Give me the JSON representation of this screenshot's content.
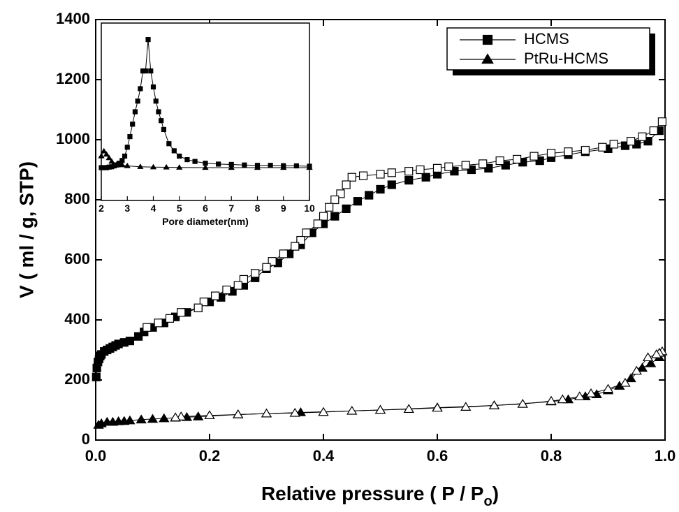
{
  "chart_data": {
    "type": "scatter",
    "ylabel": "V ( ml / g, STP)",
    "xlabel": {
      "text": "Relative pressure ( P / P",
      "subscript": "o",
      "after": ")"
    },
    "xlim": [
      0,
      1
    ],
    "ylim": [
      0,
      1400
    ],
    "xticks": [
      {
        "value": 0,
        "label": "0.0"
      },
      0.2,
      0.4,
      0.6,
      0.8,
      {
        "value": 1,
        "label": "1.0"
      }
    ],
    "yticks": [
      0,
      200,
      400,
      600,
      800,
      1000,
      1200,
      1400
    ],
    "legend": "upper right",
    "series": [
      {
        "name": "HCMS",
        "color": "#000000",
        "marker": "square",
        "branches": [
          {
            "filled": true,
            "x": [
              0.001,
              0.002,
              0.004,
              0.006,
              0.008,
              0.01,
              0.015,
              0.02,
              0.025,
              0.03,
              0.035,
              0.04,
              0.05,
              0.06,
              0.075,
              0.085,
              0.1,
              0.12,
              0.14,
              0.16,
              0.18,
              0.2,
              0.22,
              0.24,
              0.26,
              0.28,
              0.3,
              0.32,
              0.34,
              0.36,
              0.38,
              0.4,
              0.42,
              0.44,
              0.46,
              0.48,
              0.5,
              0.52,
              0.55,
              0.58,
              0.6,
              0.63,
              0.66,
              0.69,
              0.72,
              0.75,
              0.78,
              0.8,
              0.83,
              0.86,
              0.9,
              0.93,
              0.95,
              0.97,
              0.99
            ],
            "values": [
              210,
              240,
              260,
              270,
              280,
              285,
              295,
              300,
              305,
              310,
              315,
              320,
              325,
              330,
              345,
              360,
              375,
              390,
              410,
              425,
              440,
              460,
              475,
              495,
              515,
              540,
              570,
              590,
              620,
              650,
              690,
              720,
              745,
              770,
              795,
              815,
              835,
              850,
              865,
              875,
              885,
              895,
              900,
              905,
              915,
              925,
              930,
              940,
              950,
              960,
              970,
              980,
              985,
              995,
              1030
            ]
          },
          {
            "filled": false,
            "x": [
              0.995,
              0.98,
              0.96,
              0.94,
              0.91,
              0.89,
              0.86,
              0.83,
              0.8,
              0.77,
              0.74,
              0.71,
              0.68,
              0.65,
              0.62,
              0.6,
              0.57,
              0.55,
              0.52,
              0.5,
              0.47,
              0.45,
              0.44,
              0.43,
              0.42,
              0.41,
              0.4,
              0.39,
              0.37,
              0.36,
              0.35,
              0.33,
              0.31,
              0.3,
              0.28,
              0.26,
              0.25,
              0.23,
              0.21,
              0.19,
              0.18,
              0.15,
              0.13,
              0.11,
              0.09
            ],
            "values": [
              1060,
              1030,
              1010,
              995,
              985,
              975,
              965,
              960,
              955,
              945,
              935,
              930,
              920,
              915,
              910,
              905,
              900,
              895,
              890,
              885,
              880,
              875,
              850,
              820,
              800,
              775,
              745,
              720,
              690,
              665,
              645,
              620,
              595,
              575,
              555,
              535,
              515,
              500,
              480,
              460,
              440,
              425,
              405,
              390,
              375
            ]
          }
        ]
      },
      {
        "name": "PtRu-HCMS",
        "color": "#000000",
        "marker": "triangle",
        "branches": [
          {
            "filled": true,
            "x": [
              0.005,
              0.01,
              0.02,
              0.03,
              0.04,
              0.05,
              0.06,
              0.08,
              0.1,
              0.12,
              0.14,
              0.16,
              0.18,
              0.25,
              0.3,
              0.36,
              0.5,
              0.6,
              0.7,
              0.8,
              0.83,
              0.86,
              0.88,
              0.9,
              0.92,
              0.94,
              0.96,
              0.975,
              0.99
            ],
            "values": [
              50,
              55,
              60,
              60,
              62,
              63,
              65,
              68,
              70,
              72,
              74,
              76,
              78,
              85,
              88,
              92,
              100,
              108,
              115,
              128,
              135,
              145,
              152,
              165,
              180,
              205,
              240,
              255,
              275
            ]
          },
          {
            "filled": false,
            "x": [
              0.995,
              0.99,
              0.985,
              0.97,
              0.95,
              0.93,
              0.9,
              0.87,
              0.85,
              0.82,
              0.8,
              0.75,
              0.7,
              0.65,
              0.6,
              0.55,
              0.5,
              0.45,
              0.4,
              0.35,
              0.3,
              0.25,
              0.2,
              0.15,
              0.14
            ],
            "values": [
              295,
              290,
              285,
              275,
              230,
              190,
              170,
              155,
              145,
              135,
              130,
              120,
              115,
              110,
              107,
              103,
              100,
              97,
              93,
              90,
              88,
              85,
              82,
              78,
              75
            ]
          }
        ]
      }
    ],
    "inset": {
      "xlabel": "Pore diameter(nm)",
      "xlim": [
        2,
        10
      ],
      "ylim": [
        0,
        100
      ],
      "xticks": [
        2,
        3,
        4,
        5,
        6,
        7,
        8,
        9,
        10
      ],
      "series": [
        {
          "marker": "square",
          "x": [
            2.0,
            2.1,
            2.2,
            2.3,
            2.4,
            2.5,
            2.6,
            2.7,
            2.8,
            2.9,
            3.0,
            3.1,
            3.2,
            3.3,
            3.4,
            3.5,
            3.6,
            3.7,
            3.8,
            3.9,
            4.0,
            4.1,
            4.2,
            4.3,
            4.4,
            4.6,
            4.8,
            5.0,
            5.3,
            5.6,
            6.0,
            6.5,
            7.0,
            7.5,
            8.0,
            8.5,
            9.0,
            9.5,
            10.0
          ],
          "values": [
            18.5,
            18.5,
            18.5,
            18.8,
            19,
            19.5,
            20,
            21,
            22.5,
            25,
            30,
            36,
            43,
            50,
            56,
            63,
            73,
            73,
            90.7,
            73,
            64,
            56,
            50,
            45,
            40,
            32,
            28,
            25,
            23,
            22,
            21,
            20.5,
            20.3,
            20,
            19.8,
            19.8,
            19.6,
            19.5,
            19.3
          ]
        },
        {
          "marker": "triangle",
          "x": [
            2.0,
            2.1,
            2.2,
            2.3,
            2.4,
            2.6,
            2.8,
            3.0,
            3.5,
            4.0,
            4.5,
            5.0,
            6.0,
            7.0,
            8.0,
            9.0,
            10.0
          ],
          "values": [
            25,
            27.8,
            26,
            24,
            22,
            20.5,
            20,
            19.5,
            19,
            18.8,
            18.7,
            18.6,
            18.5,
            18.5,
            18.5,
            18.5,
            18.5
          ]
        }
      ]
    }
  }
}
